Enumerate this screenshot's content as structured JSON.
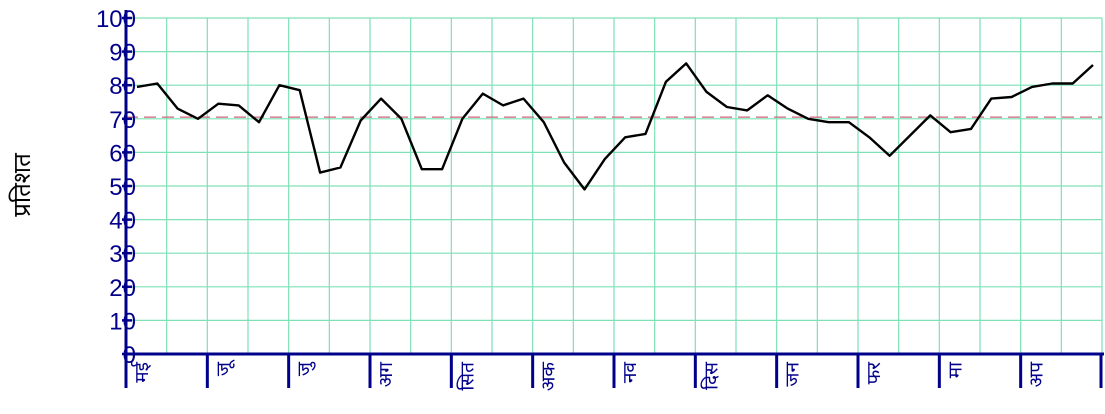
{
  "chart_data": {
    "type": "line",
    "ylabel": "प्रतिशत",
    "ylim": [
      0,
      100
    ],
    "yticks": [
      0,
      10,
      20,
      30,
      40,
      50,
      60,
      70,
      80,
      90,
      100
    ],
    "months": [
      "मई",
      "जू",
      "जु",
      "अग",
      "सित",
      "अक",
      "नव",
      "दिस",
      "जन",
      "फर",
      "मा",
      "अप"
    ],
    "grid": true,
    "reference_line": 70.5,
    "series": [
      {
        "values": [
          79.5,
          80.5,
          73,
          70,
          74.5,
          74,
          69,
          80,
          78.5,
          54,
          55.5,
          69.5,
          76,
          70,
          55,
          55,
          70,
          77.5,
          74,
          76,
          69,
          57,
          49,
          58,
          64.5,
          65.5,
          81,
          86.5,
          78,
          73.5,
          72.5,
          77,
          73,
          70,
          69,
          69,
          64.5,
          59,
          65,
          71,
          66,
          67,
          76,
          76.5,
          79.5,
          80.5,
          80.5,
          86
        ]
      }
    ]
  },
  "colors": {
    "grid": "#7FE0B8",
    "axis": "#00008B",
    "reference_line": "#CC6677",
    "line": "#000000"
  }
}
